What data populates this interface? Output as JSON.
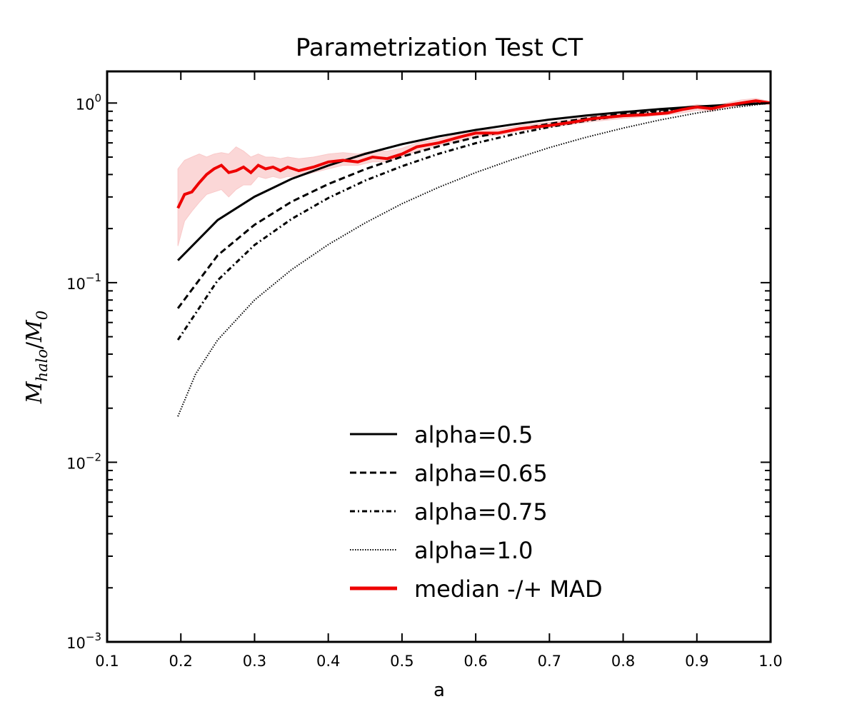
{
  "chart_data": {
    "type": "line",
    "title": "Parametrization Test CT",
    "xlabel": "a",
    "ylabel": "M_halo/M_0",
    "ylabel_main": "M",
    "ylabel_sub1": "halo",
    "ylabel_slash": "/",
    "ylabel_main2": "M",
    "ylabel_sub2": "0",
    "xlim": [
      0.1,
      1.0
    ],
    "ylim": [
      0.001,
      1.5
    ],
    "yscale": "log",
    "grid": false,
    "legend_position": "lower-right",
    "x_tick_labels": [
      "0.1",
      "0.2",
      "0.3",
      "0.4",
      "0.5",
      "0.6",
      "0.7",
      "0.8",
      "0.9",
      "1.0"
    ],
    "x_tick_values": [
      0.1,
      0.2,
      0.3,
      0.4,
      0.5,
      0.6,
      0.7,
      0.8,
      0.9,
      1.0
    ],
    "y_ticks": [
      {
        "value": 1,
        "base": "10",
        "exp": "0"
      },
      {
        "value": 0.1,
        "base": "10",
        "exp": "−1"
      },
      {
        "value": 0.01,
        "base": "10",
        "exp": "−2"
      },
      {
        "value": 0.001,
        "base": "10",
        "exp": "−3"
      }
    ],
    "series": [
      {
        "name": "alpha=0.5",
        "style": "solid",
        "color": "#000000",
        "x": [
          0.196,
          0.25,
          0.3,
          0.35,
          0.4,
          0.45,
          0.5,
          0.55,
          0.6,
          0.65,
          0.7,
          0.75,
          0.8,
          0.85,
          0.9,
          0.95,
          1.0
        ],
        "y": [
          0.133,
          0.223,
          0.301,
          0.378,
          0.449,
          0.521,
          0.59,
          0.652,
          0.708,
          0.76,
          0.809,
          0.852,
          0.89,
          0.925,
          0.956,
          0.981,
          1.0
        ]
      },
      {
        "name": "alpha=0.65",
        "style": "dashed",
        "color": "#000000",
        "x": [
          0.196,
          0.25,
          0.3,
          0.35,
          0.4,
          0.45,
          0.5,
          0.55,
          0.6,
          0.65,
          0.7,
          0.75,
          0.8,
          0.85,
          0.9,
          0.95,
          1.0
        ],
        "y": [
          0.072,
          0.142,
          0.21,
          0.282,
          0.354,
          0.428,
          0.503,
          0.575,
          0.645,
          0.707,
          0.766,
          0.821,
          0.87,
          0.913,
          0.952,
          0.978,
          1.0
        ]
      },
      {
        "name": "alpha=0.75",
        "style": "dashdot",
        "color": "#000000",
        "x": [
          0.196,
          0.25,
          0.3,
          0.35,
          0.4,
          0.45,
          0.5,
          0.55,
          0.6,
          0.65,
          0.7,
          0.75,
          0.8,
          0.85,
          0.9,
          0.95,
          1.0
        ],
        "y": [
          0.048,
          0.103,
          0.162,
          0.226,
          0.296,
          0.37,
          0.445,
          0.522,
          0.598,
          0.668,
          0.735,
          0.797,
          0.852,
          0.9,
          0.944,
          0.975,
          1.0
        ]
      },
      {
        "name": "alpha=1.0",
        "style": "dotted",
        "color": "#000000",
        "x": [
          0.196,
          0.22,
          0.25,
          0.3,
          0.35,
          0.4,
          0.45,
          0.5,
          0.55,
          0.6,
          0.65,
          0.7,
          0.75,
          0.8,
          0.85,
          0.9,
          0.95,
          1.0
        ],
        "y": [
          0.018,
          0.031,
          0.048,
          0.08,
          0.118,
          0.163,
          0.215,
          0.275,
          0.34,
          0.41,
          0.485,
          0.565,
          0.645,
          0.725,
          0.805,
          0.88,
          0.945,
          1.0
        ]
      },
      {
        "name": "median -/+ MAD",
        "style": "solid",
        "color": "#ee0000",
        "band_color": "#f9c9c9",
        "x": [
          0.196,
          0.205,
          0.215,
          0.225,
          0.235,
          0.245,
          0.255,
          0.265,
          0.275,
          0.285,
          0.295,
          0.305,
          0.315,
          0.325,
          0.335,
          0.345,
          0.36,
          0.38,
          0.4,
          0.42,
          0.44,
          0.46,
          0.48,
          0.5,
          0.52,
          0.55,
          0.58,
          0.6,
          0.63,
          0.66,
          0.7,
          0.73,
          0.76,
          0.8,
          0.83,
          0.86,
          0.88,
          0.9,
          0.92,
          0.94,
          0.96,
          0.98,
          1.0
        ],
        "y": [
          0.26,
          0.31,
          0.32,
          0.36,
          0.4,
          0.43,
          0.45,
          0.41,
          0.42,
          0.44,
          0.41,
          0.45,
          0.43,
          0.44,
          0.42,
          0.44,
          0.42,
          0.44,
          0.47,
          0.48,
          0.47,
          0.5,
          0.49,
          0.52,
          0.57,
          0.6,
          0.65,
          0.68,
          0.68,
          0.72,
          0.75,
          0.78,
          0.82,
          0.85,
          0.86,
          0.88,
          0.92,
          0.95,
          0.93,
          0.97,
          1.0,
          1.03,
          1.0
        ],
        "lower": [
          0.16,
          0.22,
          0.25,
          0.28,
          0.31,
          0.32,
          0.33,
          0.3,
          0.33,
          0.35,
          0.35,
          0.39,
          0.38,
          0.39,
          0.38,
          0.39,
          0.39,
          0.41,
          0.43,
          0.45,
          0.45,
          0.47,
          0.47,
          0.5,
          0.54,
          0.58,
          0.62,
          0.65,
          0.66,
          0.7,
          0.73,
          0.76,
          0.79,
          0.82,
          0.84,
          0.86,
          0.88,
          0.91,
          0.9,
          0.94,
          0.97,
          0.99,
          0.98
        ],
        "upper": [
          0.43,
          0.48,
          0.5,
          0.52,
          0.5,
          0.52,
          0.53,
          0.52,
          0.57,
          0.54,
          0.5,
          0.52,
          0.5,
          0.5,
          0.49,
          0.5,
          0.49,
          0.5,
          0.52,
          0.53,
          0.52,
          0.54,
          0.54,
          0.56,
          0.6,
          0.63,
          0.68,
          0.71,
          0.71,
          0.75,
          0.78,
          0.81,
          0.85,
          0.88,
          0.89,
          0.91,
          0.95,
          0.98,
          0.96,
          1.0,
          1.04,
          1.06,
          1.02
        ]
      }
    ]
  }
}
